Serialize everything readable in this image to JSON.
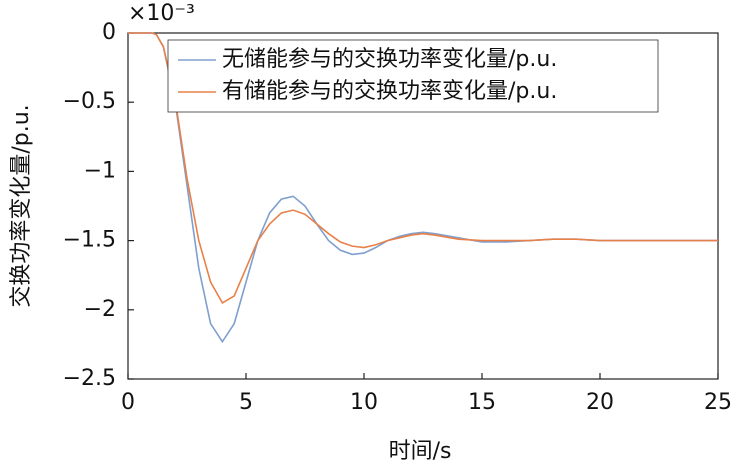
{
  "chart_data": {
    "type": "line",
    "x_label": "时间/s",
    "y_label": "交换功率变化量/p.u.",
    "y_multiplier": "×10⁻³",
    "x": [
      0,
      0.5,
      1,
      1.2,
      1.5,
      2,
      2.5,
      3,
      3.5,
      4,
      4.5,
      5,
      5.5,
      6,
      6.5,
      7,
      7.5,
      8,
      8.5,
      9,
      9.5,
      10,
      10.5,
      11,
      11.5,
      12,
      12.5,
      13,
      14,
      15,
      16,
      17,
      18,
      19,
      20,
      22,
      25
    ],
    "series": [
      {
        "name": "无储能参与的交换功率变化量/p.u.",
        "color": "#7f9fcf",
        "values": [
          0,
          0,
          0,
          -0.01,
          -0.1,
          -0.5,
          -1.1,
          -1.7,
          -2.1,
          -2.23,
          -2.1,
          -1.8,
          -1.5,
          -1.3,
          -1.2,
          -1.18,
          -1.25,
          -1.38,
          -1.5,
          -1.57,
          -1.6,
          -1.59,
          -1.55,
          -1.5,
          -1.47,
          -1.45,
          -1.44,
          -1.45,
          -1.48,
          -1.51,
          -1.51,
          -1.5,
          -1.49,
          -1.49,
          -1.5,
          -1.5,
          -1.5
        ]
      },
      {
        "name": "有储能参与的交换功率变化量/p.u.",
        "color": "#e8804a",
        "values": [
          0,
          0,
          0,
          -0.01,
          -0.1,
          -0.48,
          -1.05,
          -1.5,
          -1.8,
          -1.95,
          -1.9,
          -1.7,
          -1.5,
          -1.38,
          -1.3,
          -1.28,
          -1.31,
          -1.38,
          -1.45,
          -1.51,
          -1.54,
          -1.55,
          -1.53,
          -1.5,
          -1.48,
          -1.46,
          -1.45,
          -1.46,
          -1.49,
          -1.5,
          -1.5,
          -1.5,
          -1.49,
          -1.49,
          -1.5,
          -1.5,
          -1.5
        ]
      }
    ],
    "xlim": [
      0,
      25
    ],
    "xticks": [
      0,
      5,
      10,
      15,
      20,
      25
    ],
    "ylim": [
      -2.5,
      0
    ],
    "yticks": [
      {
        "value": -2.5,
        "label": "−2.5"
      },
      {
        "value": -2,
        "label": "−2"
      },
      {
        "value": -1.5,
        "label": "−1.5"
      },
      {
        "value": -1,
        "label": "−1"
      },
      {
        "value": -0.5,
        "label": "−0.5"
      },
      0
    ],
    "legend": "top"
  }
}
